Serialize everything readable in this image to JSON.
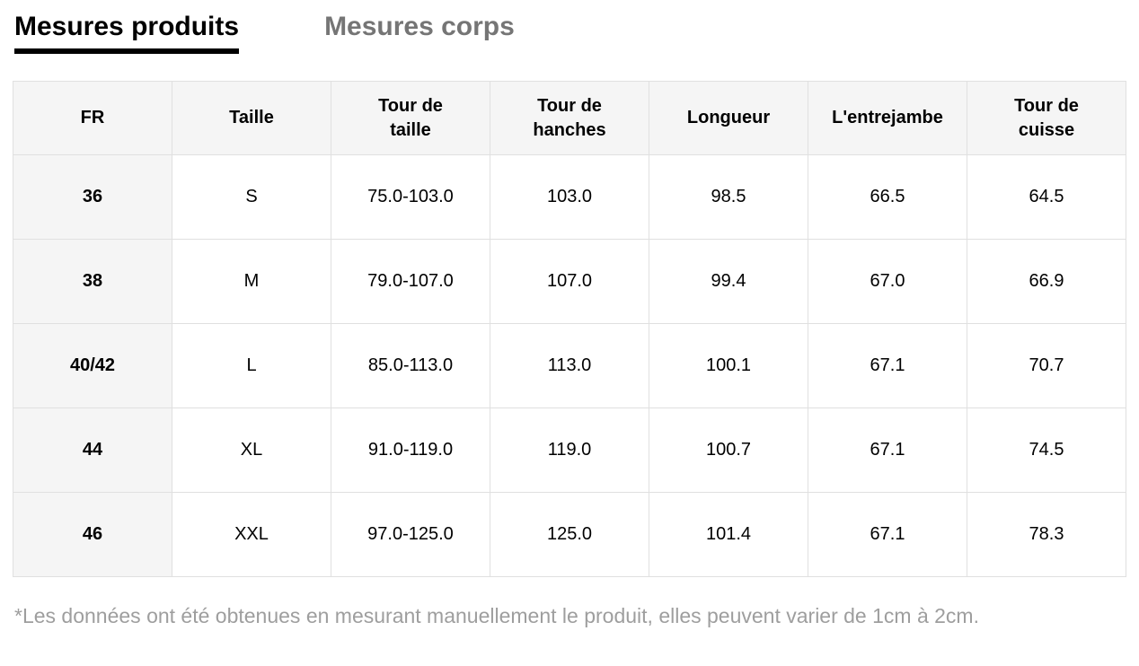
{
  "tabs": [
    {
      "label": "Mesures produits",
      "active": true
    },
    {
      "label": "Mesures corps",
      "active": false
    }
  ],
  "table": {
    "headers": [
      "FR",
      "Taille",
      "Tour de\ntaille",
      "Tour de\nhanches",
      "Longueur",
      "L'entrejambe",
      "Tour de\ncuisse"
    ],
    "rows": [
      [
        "36",
        "S",
        "75.0-103.0",
        "103.0",
        "98.5",
        "66.5",
        "64.5"
      ],
      [
        "38",
        "M",
        "79.0-107.0",
        "107.0",
        "99.4",
        "67.0",
        "66.9"
      ],
      [
        "40/42",
        "L",
        "85.0-113.0",
        "113.0",
        "100.1",
        "67.1",
        "70.7"
      ],
      [
        "44",
        "XL",
        "91.0-119.0",
        "119.0",
        "100.7",
        "67.1",
        "74.5"
      ],
      [
        "46",
        "XXL",
        "97.0-125.0",
        "125.0",
        "101.4",
        "67.1",
        "78.3"
      ]
    ]
  },
  "footnote": "*Les données ont été obtenues en mesurant manuellement le produit, elles peuvent varier de 1cm à 2cm.",
  "colors": {
    "header-bg": "#f5f5f5",
    "border": "#e0e0e0",
    "tab-inactive": "#757575",
    "footnote": "#9e9e9e",
    "text": "#000000"
  }
}
